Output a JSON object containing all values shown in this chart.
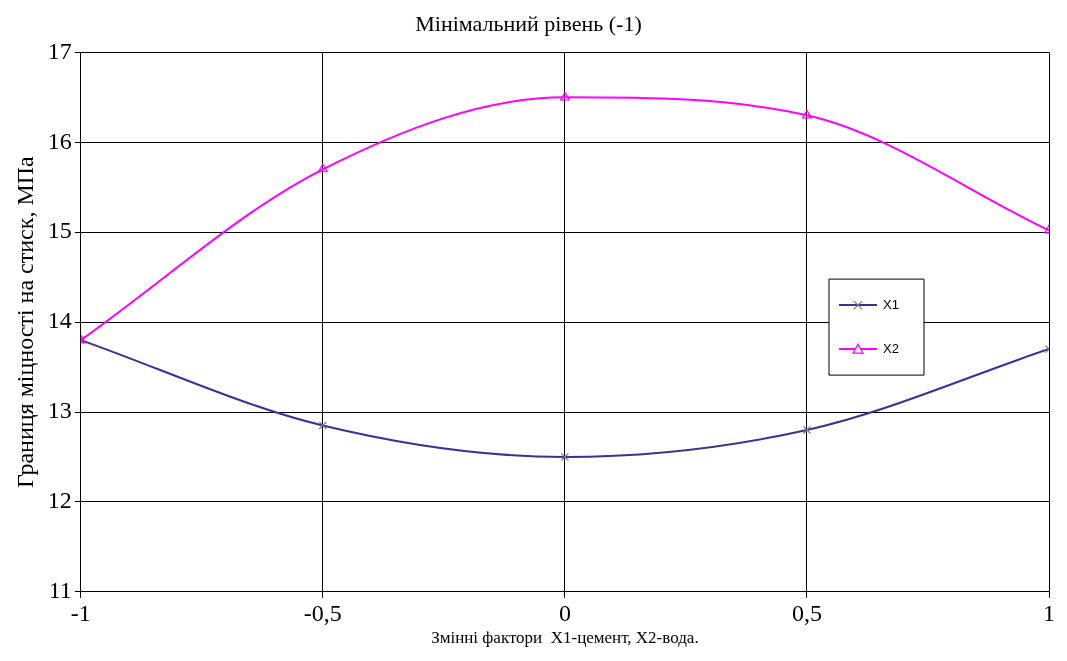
{
  "chart_data": {
    "type": "line",
    "title": "Мінімальний рівень (-1)",
    "xlabel": "Змінні фактори  X1-цемент, X2-вода.",
    "ylabel": "Границя міцності на стиск, МПа",
    "x": [
      -1,
      -0.5,
      0,
      0.5,
      1
    ],
    "series": [
      {
        "name": "X1",
        "color": "#333399",
        "marker": "cross",
        "values": [
          13.8,
          12.85,
          12.5,
          12.8,
          13.7
        ]
      },
      {
        "name": "X2",
        "color": "#ff00ff",
        "marker": "triangle",
        "values": [
          13.8,
          15.7,
          16.5,
          16.3,
          15.02
        ]
      }
    ],
    "xlim": [
      -1,
      1
    ],
    "xticks": [
      -1,
      {
        "value": -0.5,
        "label": "-0,5"
      },
      0,
      {
        "value": 0.5,
        "label": "0,5"
      },
      1
    ],
    "ylim": [
      11,
      17
    ],
    "yticks": [
      11,
      12,
      13,
      14,
      15,
      16,
      17
    ],
    "grid": true,
    "legend": "right"
  }
}
